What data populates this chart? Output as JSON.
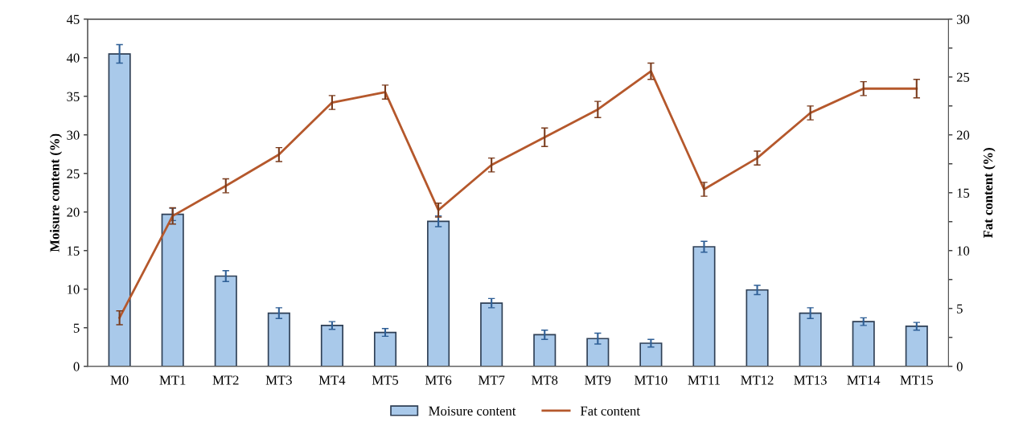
{
  "chart_data": {
    "type": "bar",
    "categories": [
      "M0",
      "MT1",
      "MT2",
      "MT3",
      "MT4",
      "MT5",
      "MT6",
      "MT7",
      "MT8",
      "MT9",
      "MT10",
      "MT11",
      "MT12",
      "MT13",
      "MT14",
      "MT15"
    ],
    "ylabel": "Moisure content (%)",
    "y2label": "Fat content (%)",
    "series": [
      {
        "name": "Moisure content",
        "color": "#a9c9ea",
        "values": [
          40.5,
          19.7,
          11.7,
          6.9,
          5.3,
          4.4,
          18.8,
          8.2,
          4.1,
          3.6,
          3.0,
          15.5,
          9.9,
          6.9,
          5.8,
          5.2
        ],
        "errors": [
          1.2,
          0.8,
          0.7,
          0.7,
          0.5,
          0.5,
          0.7,
          0.6,
          0.6,
          0.7,
          0.5,
          0.7,
          0.6,
          0.7,
          0.5,
          0.5
        ]
      },
      {
        "name": "Fat content",
        "type": "line",
        "axis": "y2",
        "color": "#b5582c",
        "values": [
          4.2,
          13.0,
          15.6,
          18.3,
          22.8,
          23.7,
          13.5,
          17.4,
          19.8,
          22.2,
          25.5,
          15.3,
          18.0,
          21.9,
          24.0,
          24.0
        ],
        "errors": [
          0.6,
          0.7,
          0.6,
          0.6,
          0.6,
          0.6,
          0.6,
          0.6,
          0.8,
          0.7,
          0.7,
          0.6,
          0.6,
          0.6,
          0.6,
          0.8
        ]
      }
    ],
    "ylim": [
      0,
      45
    ],
    "yticks": [
      0,
      5,
      10,
      15,
      20,
      25,
      30,
      35,
      40,
      45
    ],
    "y2lim": [
      0,
      30
    ],
    "y2ticks": [
      0,
      {
        "value": 2.5,
        "label": null
      },
      5,
      {
        "value": 7.5,
        "label": null
      },
      10,
      {
        "value": 12.5,
        "label": null
      },
      15,
      {
        "value": 17.5,
        "label": null
      },
      20,
      {
        "value": 22.5,
        "label": null
      },
      25,
      {
        "value": 27.5,
        "label": null
      },
      30
    ],
    "legend": "bottom",
    "grid": false,
    "marker": "none"
  }
}
